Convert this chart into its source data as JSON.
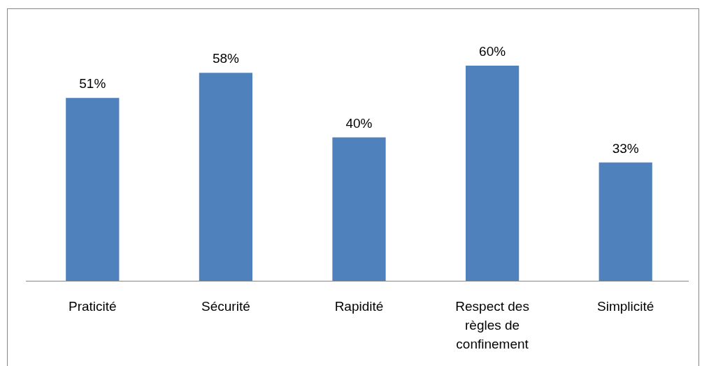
{
  "chart_data": {
    "type": "bar",
    "categories": [
      "Praticité",
      "Sécurité",
      "Rapidité",
      "Respect des règles de confinement",
      "Simplicité"
    ],
    "values": [
      51,
      58,
      40,
      60,
      33
    ],
    "color": "#4f81bd",
    "data_labels": true,
    "value_labels": [
      "51%",
      "58%",
      "40%",
      "60%",
      "33%"
    ]
  }
}
